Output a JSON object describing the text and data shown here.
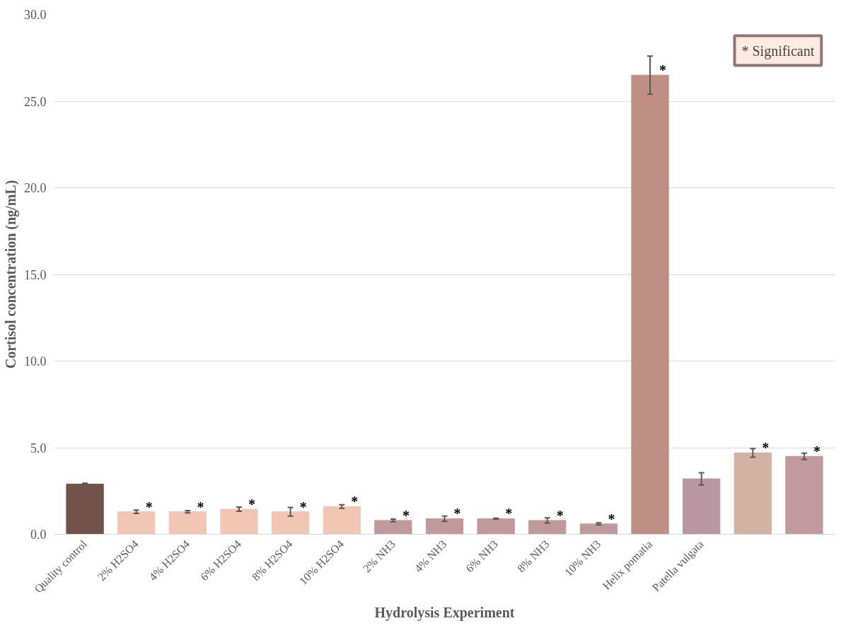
{
  "chart_data": {
    "type": "bar",
    "xlabel": "Hydrolysis Experiment",
    "ylabel": "Cortisol concentration (ng/mL)",
    "categories": [
      "Quality control",
      "2% H2SO4",
      "4% H2SO4",
      "6% H2SO4",
      "8% H2SO4",
      "10% H2SO4",
      "2% NH3",
      "4% NH3",
      "6% NH3",
      "8% NH3",
      "10% NH3",
      "Helix pomatia",
      "Patella vulgata",
      null,
      null
    ],
    "values": [
      2.9,
      1.3,
      1.3,
      1.45,
      1.3,
      1.6,
      0.8,
      0.9,
      0.9,
      0.8,
      0.6,
      26.5,
      3.2,
      4.7,
      4.5
    ],
    "errors": [
      0.05,
      0.1,
      0.07,
      0.12,
      0.25,
      0.1,
      0.08,
      0.15,
      0.03,
      0.15,
      0.06,
      1.1,
      0.35,
      0.25,
      0.18
    ],
    "colors": [
      "#725349",
      "#f2c6b5",
      "#f2c6b5",
      "#f2c6b5",
      "#f2c6b5",
      "#f2c6b5",
      "#c09a9a",
      "#c09a9a",
      "#c09a9a",
      "#c09a9a",
      "#c09a9a",
      "#c08f84",
      "#b897a2",
      "#d2b2a3",
      "#c09a9e"
    ],
    "value_labels": [
      null,
      "*",
      "*",
      "*",
      "*",
      "*",
      "*",
      "*",
      "*",
      "*",
      "*",
      "*",
      null,
      "*",
      "*"
    ],
    "annotations": [
      "* Significant"
    ],
    "ylim": [
      0,
      30
    ],
    "yticks": [
      {
        "value": 0,
        "label": "0.0"
      },
      {
        "value": 5,
        "label": "5.0"
      },
      {
        "value": 10,
        "label": "10.0"
      },
      {
        "value": 15,
        "label": "15.0"
      },
      {
        "value": 20,
        "label": "20.0"
      },
      {
        "value": 25,
        "label": "25.0"
      },
      {
        "value": 30,
        "label": "30.0"
      }
    ],
    "grid": "y"
  }
}
